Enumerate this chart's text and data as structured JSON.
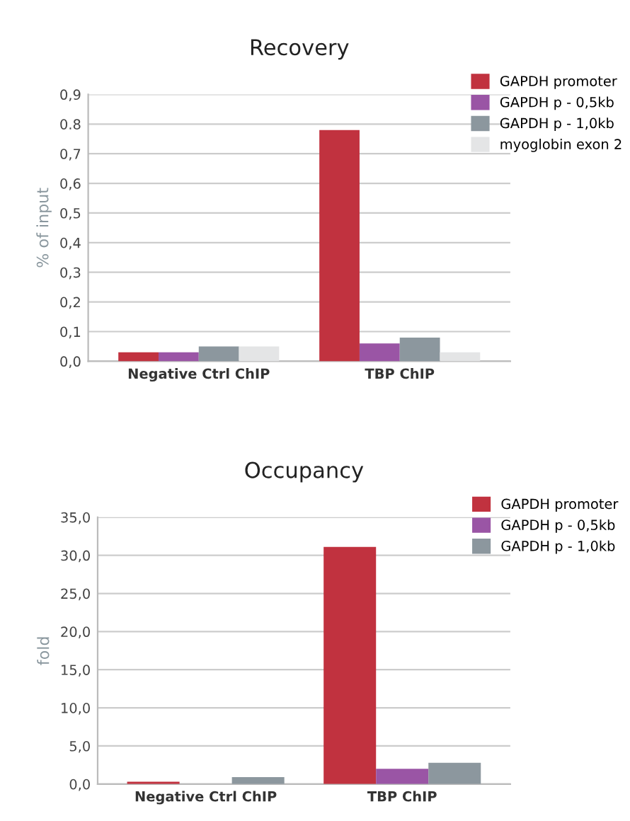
{
  "chart_data": [
    {
      "type": "bar",
      "title": "Recovery",
      "ylabel": "% of input",
      "categories": [
        "Negative Ctrl ChIP",
        "TBP ChIP"
      ],
      "series": [
        {
          "name": "GAPDH promoter",
          "color": "#c1323f",
          "values": [
            0.03,
            0.78
          ]
        },
        {
          "name": "GAPDH p - 0,5kb",
          "color": "#9a55a5",
          "values": [
            0.03,
            0.06
          ]
        },
        {
          "name": "GAPDH p - 1,0kb",
          "color": "#8c979e",
          "values": [
            0.05,
            0.08
          ]
        },
        {
          "name": "myoglobin exon 2",
          "color": "#e4e5e6",
          "values": [
            0.05,
            0.03
          ]
        }
      ],
      "ylim": [
        0,
        0.9
      ],
      "yticks": [
        {
          "value": 0,
          "label": "0,0"
        },
        {
          "value": 0.1,
          "label": "0,1"
        },
        {
          "value": 0.2,
          "label": "0,2"
        },
        {
          "value": 0.3,
          "label": "0,3"
        },
        {
          "value": 0.4,
          "label": "0,4"
        },
        {
          "value": 0.5,
          "label": "0,5"
        },
        {
          "value": 0.6,
          "label": "0,6"
        },
        {
          "value": 0.7,
          "label": "0,7"
        },
        {
          "value": 0.8,
          "label": "0.8"
        },
        {
          "value": 0.9,
          "label": "0,9"
        }
      ],
      "grid": "y",
      "legend": "top right"
    },
    {
      "type": "bar",
      "title": "Occupancy",
      "ylabel": "fold",
      "categories": [
        "Negative Ctrl ChIP",
        "TBP ChIP"
      ],
      "series": [
        {
          "name": "GAPDH promoter",
          "color": "#c1323f",
          "values": [
            0.3,
            31.1
          ]
        },
        {
          "name": "GAPDH p - 0,5kb",
          "color": "#9a55a5",
          "values": [
            0,
            2.0
          ]
        },
        {
          "name": "GAPDH p - 1,0kb",
          "color": "#8c979e",
          "values": [
            0.9,
            2.8
          ]
        }
      ],
      "ylim": [
        0,
        35
      ],
      "yticks": [
        {
          "value": 0,
          "label": "0,0"
        },
        {
          "value": 5,
          "label": "5,0"
        },
        {
          "value": 10,
          "label": "10,0"
        },
        {
          "value": 15,
          "label": "15,0"
        },
        {
          "value": 20,
          "label": "20,0"
        },
        {
          "value": 25,
          "label": "25,0"
        },
        {
          "value": 30,
          "label": "30,0"
        },
        {
          "value": 35,
          "label": "35,0"
        }
      ],
      "grid": "y",
      "legend": "top right"
    }
  ]
}
